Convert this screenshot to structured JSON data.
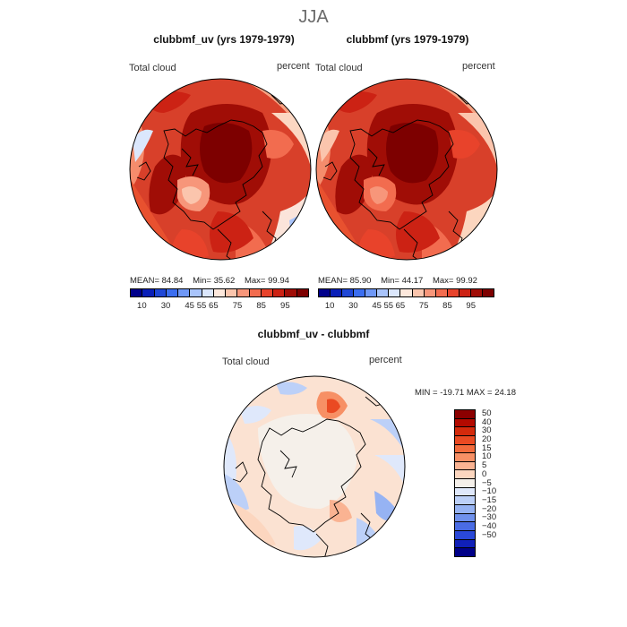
{
  "season": "JJA",
  "panels": [
    {
      "title": "clubbmf_uv (yrs 1979-1979)",
      "variable": "Total cloud",
      "units": "percent",
      "stats": {
        "mean_label": "MEAN=",
        "mean": "84.84",
        "min_label": "Min=",
        "min": "35.62",
        "max_label": "Max=",
        "max": "99.94"
      }
    },
    {
      "title": "clubbmf (yrs 1979-1979)",
      "variable": "Total cloud",
      "units": "percent",
      "stats": {
        "mean_label": "MEAN=",
        "mean": "85.90",
        "min_label": "Min=",
        "min": "44.17",
        "max_label": "Max=",
        "max": "99.92"
      }
    }
  ],
  "top_colorbar": {
    "ticks": [
      "10",
      "30",
      "45",
      "55",
      "65",
      "75",
      "85",
      "95"
    ],
    "colors": [
      "#00008b",
      "#0a1fb8",
      "#1f47d6",
      "#3b6ef0",
      "#6f98f7",
      "#a9c4fb",
      "#dbe7fc",
      "#fde8dc",
      "#fbc5ad",
      "#f7967a",
      "#f26c4f",
      "#e8432b",
      "#cc2214",
      "#a00d06",
      "#7d0000"
    ]
  },
  "diff_panel": {
    "title": "clubbmf_uv - clubbmf",
    "variable": "Total cloud",
    "units": "percent",
    "stats_text": "MIN = -19.71 MAX =  24.18"
  },
  "diff_colorbar": {
    "ticks": [
      "50",
      "40",
      "30",
      "20",
      "15",
      "10",
      "5",
      "0",
      "−5",
      "−10",
      "−15",
      "−20",
      "−30",
      "−40",
      "−50"
    ],
    "colors": [
      "#8b0000",
      "#b30a00",
      "#d42a0c",
      "#ea4a22",
      "#f26b3c",
      "#f79065",
      "#fab392",
      "#fcd6bf",
      "#f5f0ea",
      "#dfe8fb",
      "#bcd0f8",
      "#96b3f3",
      "#6f91ec",
      "#4a6ce4",
      "#2a48d8",
      "#1020b8",
      "#000088"
    ]
  },
  "maps": {
    "left_field": "high",
    "right_field": "high",
    "diff_field": "anomaly"
  }
}
